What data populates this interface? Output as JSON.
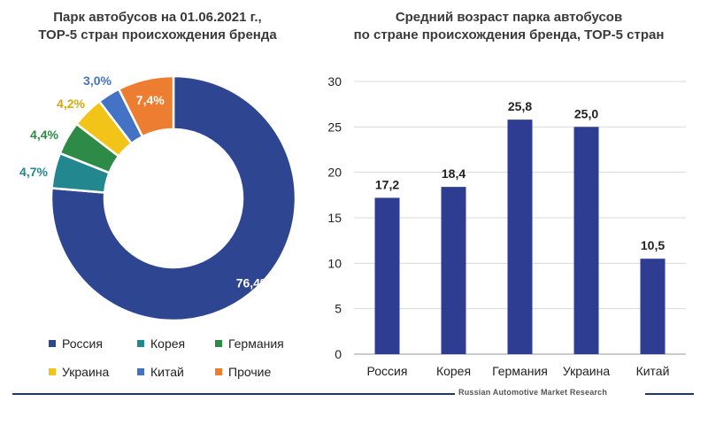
{
  "donut": {
    "title_line1": "Парк автобусов на 01.06.2021 г.,",
    "title_line2": "ТОР-5 стран происхождения бренда",
    "legend": [
      "Россия",
      "Корея",
      "Германия",
      "Украина",
      "Китай",
      "Прочие"
    ]
  },
  "bar": {
    "title_line1": "Средний возраст парка автобусов",
    "title_line2": "по стране происхождения бренда, ТОР-5 стран"
  },
  "footer": {
    "source": "Russian Automotive Market Research"
  },
  "chart_data": [
    {
      "type": "pie",
      "title": "Парк автобусов на 01.06.2021 г., ТОР-5 стран происхождения бренда",
      "categories": [
        "Россия",
        "Корея",
        "Германия",
        "Украина",
        "Китай",
        "Прочие"
      ],
      "values": [
        76.4,
        4.7,
        4.4,
        4.2,
        3.0,
        7.4
      ],
      "labels": [
        "76,4%",
        "4,7%",
        "4,4%",
        "4,2%",
        "3,0%",
        "7,4%"
      ],
      "colors": [
        "#2e4591",
        "#23878f",
        "#2e8b47",
        "#f2c417",
        "#4472c4",
        "#ed7d31"
      ],
      "legend_position": "bottom"
    },
    {
      "type": "bar",
      "title": "Средний возраст парка автобусов по стране происхождения бренда, ТОР-5 стран",
      "categories": [
        "Россия",
        "Корея",
        "Германия",
        "Украина",
        "Китай"
      ],
      "values": [
        17.2,
        18.4,
        25.8,
        25.0,
        10.5
      ],
      "labels": [
        "17,2",
        "18,4",
        "25,8",
        "25,0",
        "10,5"
      ],
      "yticks": [
        "0",
        "5",
        "10",
        "15",
        "20",
        "25",
        "30"
      ],
      "ylim": [
        0,
        30
      ],
      "grid": true,
      "color": "#2e3d92"
    }
  ]
}
